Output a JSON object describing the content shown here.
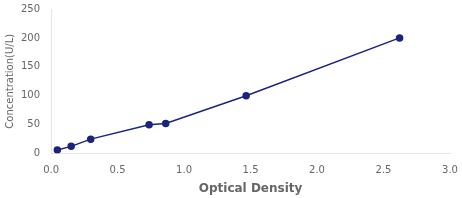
{
  "chart_data": {
    "type": "line",
    "x": [
      0.047,
      0.151,
      0.298,
      0.737,
      0.862,
      1.467,
      2.621
    ],
    "values": [
      6.25,
      12.5,
      25,
      50,
      52,
      100,
      200
    ],
    "color": "#1a237e",
    "marker": "circle",
    "line_style": "solid",
    "xlabel": "Optical Density",
    "ylabel": "Concentration(U/L)",
    "xlim": [
      0,
      3.0
    ],
    "ylim": [
      0,
      250
    ],
    "xticks": [
      {
        "value": 0,
        "label": "0.0"
      },
      0.5,
      {
        "value": 1.0,
        "label": "1.0"
      },
      1.5,
      {
        "value": 2.0,
        "label": "2.0"
      },
      2.5,
      {
        "value": 3.0,
        "label": "3.0"
      }
    ],
    "yticks": [
      0,
      50,
      100,
      150,
      200,
      250
    ],
    "grid": false
  }
}
